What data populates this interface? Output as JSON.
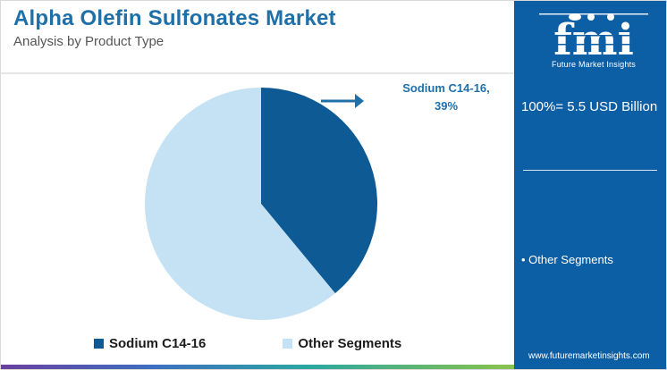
{
  "header": {
    "title": "Alpha Olefin Sulfonates Market",
    "subtitle": "Analysis by Product Type"
  },
  "chart_data": {
    "type": "pie",
    "slices": [
      {
        "label": "Sodium C14-16",
        "value": 39,
        "color": "#0d5a94"
      },
      {
        "label": "Other Segments",
        "value": 61,
        "color": "#c5e2f4"
      }
    ],
    "annotation": {
      "line1": "Sodium C14-16,",
      "line2": "39%"
    },
    "legend": [
      "Sodium C14-16",
      "Other Segments"
    ],
    "legend_position": "bottom"
  },
  "sidebar": {
    "logo_text": "fmi",
    "logo_subtitle": "Future Market Insights",
    "total": "100%= 5.5 USD Billion",
    "segment_item": "• Other Segments",
    "website": "www.futuremarketinsights.com"
  },
  "colors": {
    "brand_blue": "#0d5fa5",
    "title_blue": "#1f6fa8",
    "dark_slice": "#0d5a94",
    "light_slice": "#c5e2f4",
    "annotation_arrow": "#1f6fa8"
  }
}
